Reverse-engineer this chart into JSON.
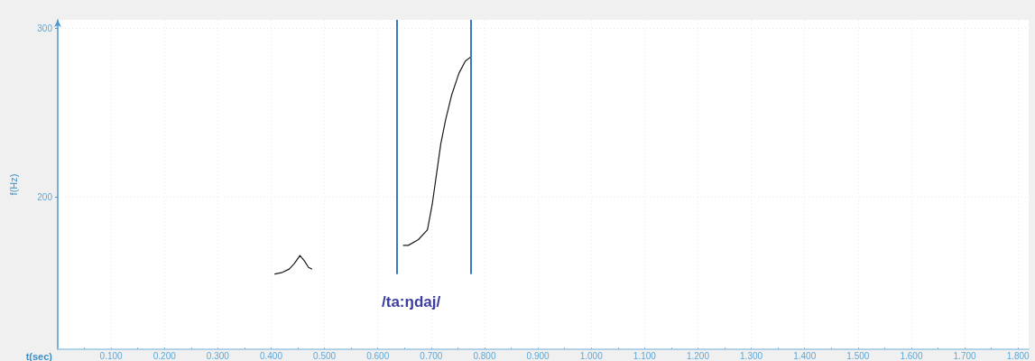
{
  "chart_data": {
    "type": "line",
    "xlabel": "t(sec)",
    "ylabel": "f(Hz)",
    "annotations": [
      "/ta:ŋdaj/"
    ],
    "series": [
      {
        "color": "#1a1a1a",
        "x": [
          0.407,
          0.421,
          0.434,
          0.444,
          0.454,
          0.463,
          0.47,
          0.476
        ],
        "values": [
          154.5,
          155.5,
          157.5,
          161,
          165.5,
          162,
          158.5,
          157.5
        ]
      },
      {
        "color": "#1a1a1a",
        "x": [
          0.648,
          0.657,
          0.676,
          0.693,
          0.702,
          0.71,
          0.718,
          0.727,
          0.738,
          0.752,
          0.764,
          0.775
        ],
        "values": [
          171.5,
          171.5,
          174.9,
          180.7,
          195.9,
          213.7,
          231.6,
          245.8,
          260.1,
          273.4,
          280.6,
          283.3
        ]
      }
    ],
    "ref_lines": [
      {
        "axis": "x",
        "value": 0.635,
        "color": "#3a78c8"
      },
      {
        "axis": "x",
        "value": 0.775,
        "color": "#3a78c8"
      }
    ],
    "xlim": [
      0,
      1.82
    ],
    "ylim": [
      110,
      305
    ],
    "xticks": [
      {
        "value": 0.05,
        "label": null
      },
      {
        "value": 0.1,
        "label": "0.100"
      },
      {
        "value": 0.15,
        "label": null
      },
      {
        "value": 0.2,
        "label": "0.200"
      },
      {
        "value": 0.25,
        "label": null
      },
      {
        "value": 0.3,
        "label": "0.300"
      },
      {
        "value": 0.35,
        "label": null
      },
      {
        "value": 0.4,
        "label": "0.400"
      },
      {
        "value": 0.45,
        "label": null
      },
      {
        "value": 0.5,
        "label": "0.500"
      },
      {
        "value": 0.55,
        "label": null
      },
      {
        "value": 0.6,
        "label": "0.600"
      },
      {
        "value": 0.65,
        "label": null
      },
      {
        "value": 0.7,
        "label": "0.700"
      },
      {
        "value": 0.75,
        "label": null
      },
      {
        "value": 0.8,
        "label": "0.800"
      },
      {
        "value": 0.85,
        "label": null
      },
      {
        "value": 0.9,
        "label": "0.900"
      },
      {
        "value": 0.95,
        "label": null
      },
      {
        "value": 1.0,
        "label": "1.000"
      },
      {
        "value": 1.05,
        "label": null
      },
      {
        "value": 1.1,
        "label": "1.100"
      },
      {
        "value": 1.15,
        "label": null
      },
      {
        "value": 1.2,
        "label": "1.200"
      },
      {
        "value": 1.25,
        "label": null
      },
      {
        "value": 1.3,
        "label": "1.300"
      },
      {
        "value": 1.35,
        "label": null
      },
      {
        "value": 1.4,
        "label": "1.400"
      },
      {
        "value": 1.45,
        "label": null
      },
      {
        "value": 1.5,
        "label": "1.500"
      },
      {
        "value": 1.55,
        "label": null
      },
      {
        "value": 1.6,
        "label": "1.600"
      },
      {
        "value": 1.65,
        "label": null
      },
      {
        "value": 1.7,
        "label": "1.700"
      },
      {
        "value": 1.75,
        "label": null
      },
      {
        "value": 1.8,
        "label": "1.800"
      }
    ],
    "yticks": [
      200,
      300
    ],
    "grid": true
  }
}
